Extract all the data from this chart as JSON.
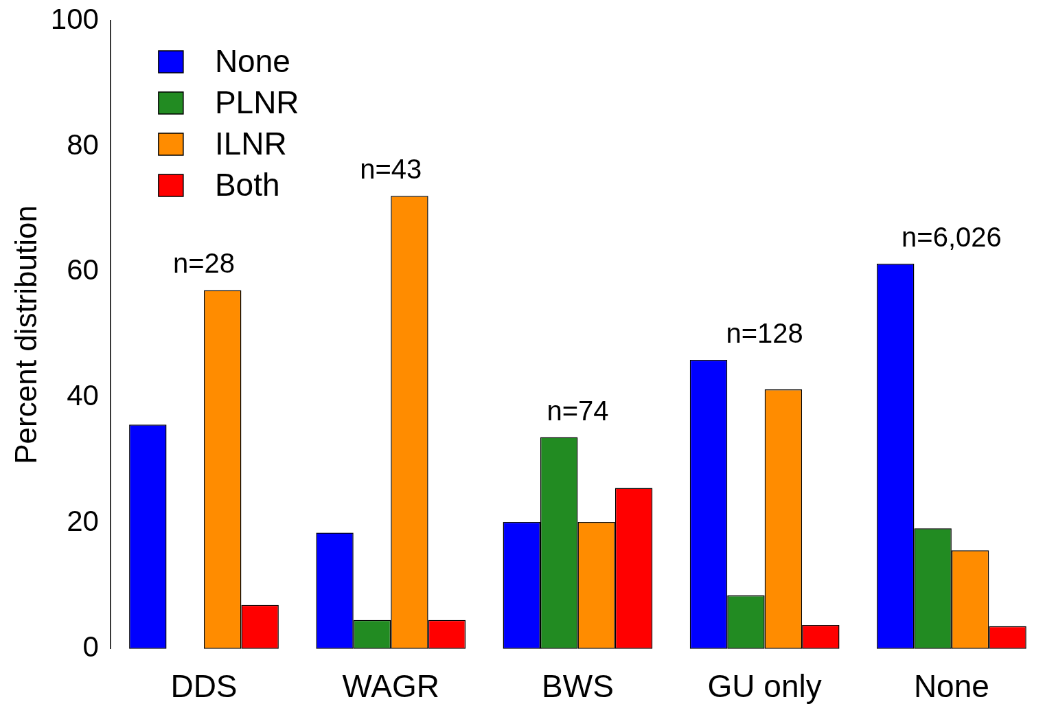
{
  "chart_data": {
    "type": "bar",
    "ylabel": "Percent distribution",
    "categories": [
      "DDS",
      "WAGR",
      "BWS",
      "GU only",
      "None"
    ],
    "series": [
      {
        "name": "None",
        "color": "#0000ff",
        "values": [
          35.7,
          18.5,
          20.2,
          46.0,
          61.3
        ]
      },
      {
        "name": "PLNR",
        "color": "#228b22",
        "values": [
          0,
          4.6,
          33.7,
          8.5,
          19.2
        ]
      },
      {
        "name": "ILNR",
        "color": "#ff8c00",
        "values": [
          57.1,
          72.1,
          20.2,
          41.3,
          15.7
        ]
      },
      {
        "name": "Both",
        "color": "#ff0000",
        "values": [
          7.0,
          4.6,
          25.6,
          3.8,
          3.6
        ]
      }
    ],
    "ylim": [
      0,
      100
    ],
    "yticks": [
      0,
      20,
      40,
      60,
      80,
      100
    ],
    "grid": false,
    "legend": "top left",
    "annotations": [
      "n=28",
      "n=43",
      "n=74",
      "n=128",
      "n=6,026"
    ]
  }
}
